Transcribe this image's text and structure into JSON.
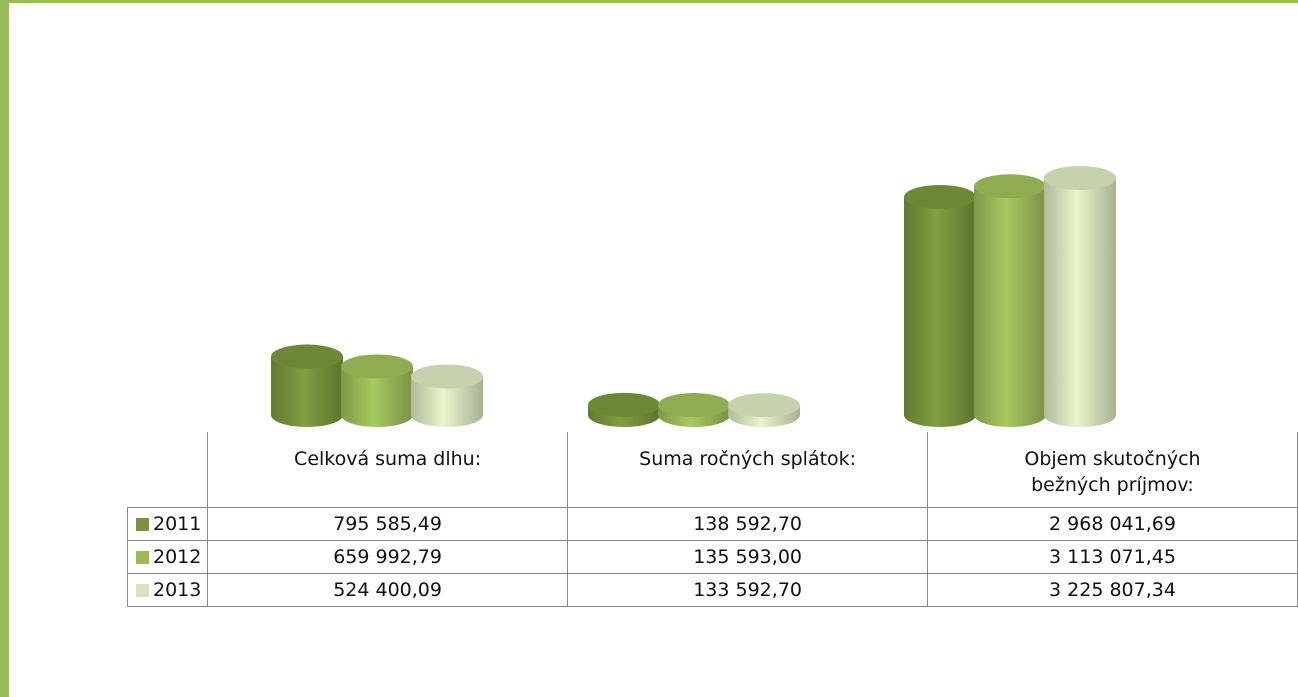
{
  "chart_data": {
    "type": "cylinder",
    "categories": [
      "Celková suma dlhu:",
      "Suma ročných splátok:",
      "Objem skutočných bežných príjmov:"
    ],
    "series": [
      {
        "name": "2011",
        "color": "#77933c",
        "values": [
          795585.49,
          138592.7,
          2968041.69
        ],
        "value_labels": [
          "795 585,49",
          "138 592,70",
          "2 968 041,69"
        ]
      },
      {
        "name": "2012",
        "color": "#9bbb59",
        "values": [
          659992.79,
          135593.0,
          3113071.45
        ],
        "value_labels": [
          "659 992,79",
          "135 593,00",
          "3 113 071,45"
        ]
      },
      {
        "name": "2013",
        "color": "#d7e4bd",
        "values": [
          524400.09,
          133592.7,
          3225807.34
        ],
        "value_labels": [
          "524 400,09",
          "133 592,70",
          "3 225 807,34"
        ]
      }
    ]
  }
}
